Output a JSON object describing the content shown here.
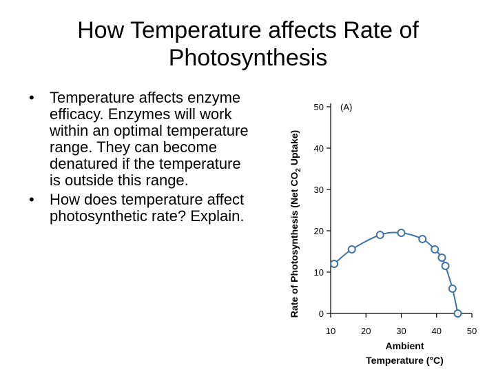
{
  "slide": {
    "title": "How Temperature affects Rate of Photosynthesis",
    "bullets": [
      "Temperature affects enzyme efficacy. Enzymes will work within an optimal temperature range. They can become denatured if the temperature is outside this range.",
      "How does temperature affect photosynthetic rate? Explain."
    ]
  },
  "chart_data": {
    "type": "line",
    "panel_label": "(A)",
    "xlabel_line1": "Ambient",
    "xlabel_line2": "Temperature (°C)",
    "ylabel_prefix": "Rate of Photosynthesis (Net CO",
    "ylabel_sub": "2",
    "ylabel_suffix": " Uptake)",
    "xlim": [
      10,
      50
    ],
    "ylim": [
      0,
      50
    ],
    "xticks": [
      10,
      20,
      30,
      40,
      50
    ],
    "yticks": [
      0,
      10,
      20,
      30,
      40,
      50
    ],
    "grid": false,
    "series": [
      {
        "x": [
          11,
          16,
          24,
          30,
          36,
          39.5,
          41.5,
          42.5,
          44.5,
          46
        ],
        "y": [
          12,
          15.5,
          19,
          19.5,
          18,
          15.5,
          13.5,
          11.5,
          6,
          0
        ],
        "color": "#3f73a8"
      }
    ]
  }
}
